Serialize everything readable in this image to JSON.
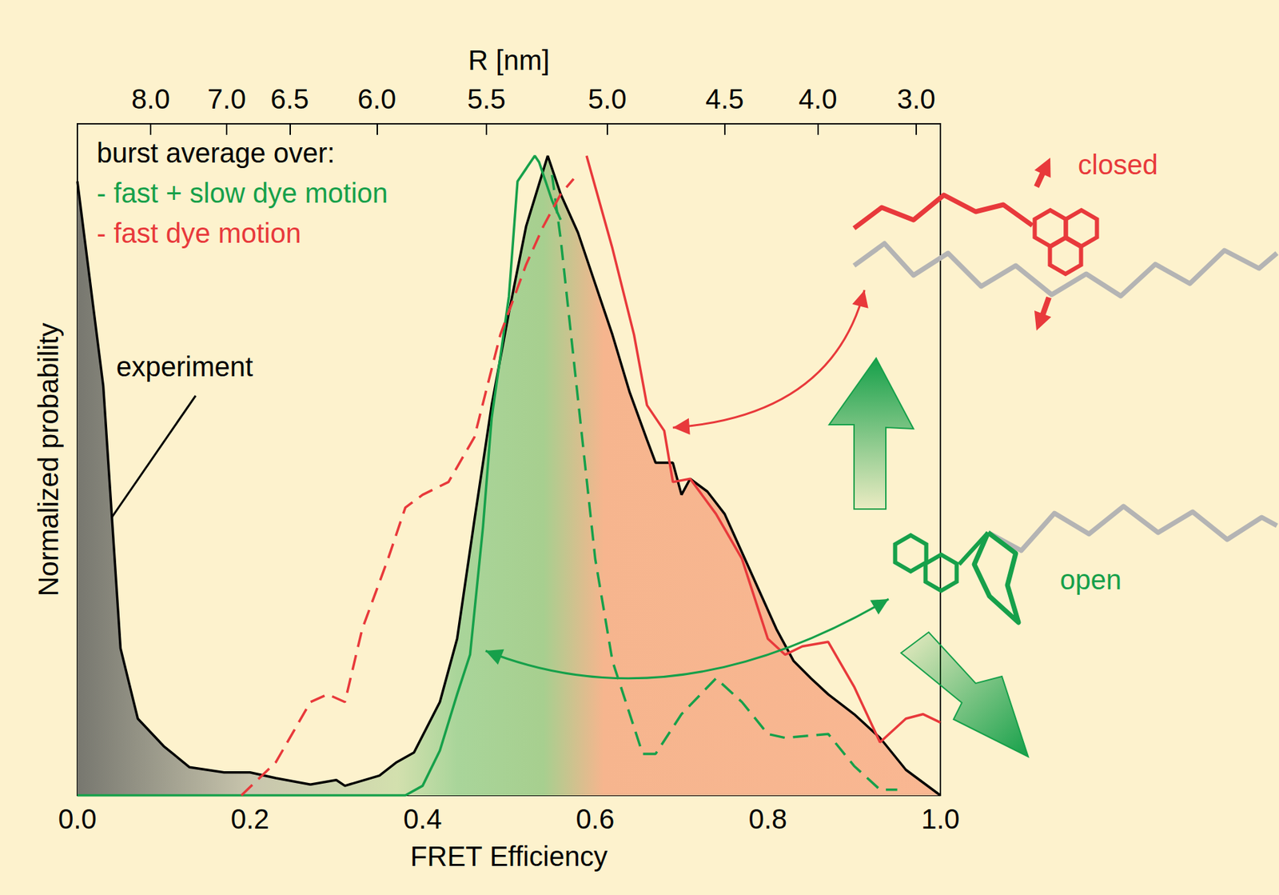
{
  "chart_data": {
    "type": "line",
    "xlabel": "FRET Efficiency",
    "ylabel": "Normalized probability",
    "x2label": "R [nm]",
    "xlim": [
      0,
      1
    ],
    "xticks": [
      {
        "value": 0,
        "label": "0.0"
      },
      0.2,
      0.4,
      0.6,
      0.8,
      {
        "value": 1,
        "label": "1.0"
      }
    ],
    "x2lim": [
      0,
      1
    ],
    "x2ticks": [
      {
        "value": 0.085,
        "label": "8.0"
      },
      {
        "value": 0.173,
        "label": "7.0"
      },
      {
        "value": 0.246,
        "label": "6.5"
      },
      {
        "value": 0.347,
        "label": "6.0"
      },
      {
        "value": 0.474,
        "label": "5.5"
      },
      {
        "value": 0.614,
        "label": "5.0"
      },
      {
        "value": 0.75,
        "label": "4.5"
      },
      {
        "value": 0.858,
        "label": "4.0"
      },
      {
        "value": 0.972,
        "label": "3.0"
      }
    ],
    "ylim": [
      0,
      1.05
    ],
    "yticks": [],
    "tick_labels": "x",
    "grid": false,
    "marker": "none",
    "legend": "upper left",
    "legend_title": "burst average over:",
    "annotations": [
      {
        "text": "closed",
        "color": "#e8393b"
      },
      {
        "text": "open",
        "color": "#16a04a"
      }
    ],
    "series": [
      {
        "name": "experiment",
        "type": "area",
        "color": "#000000",
        "line_style": "solid",
        "x": [
          0,
          0.03,
          0.05,
          0.07,
          0.1,
          0.13,
          0.17,
          0.2,
          0.23,
          0.27,
          0.3,
          0.31,
          0.35,
          0.37,
          0.39,
          0.42,
          0.44,
          0.46,
          0.48,
          0.5,
          0.52,
          0.545,
          0.56,
          0.58,
          0.6,
          0.62,
          0.64,
          0.66,
          0.67,
          0.69,
          0.7,
          0.71,
          0.73,
          0.75,
          0.77,
          0.79,
          0.81,
          0.83,
          0.85,
          0.87,
          0.9,
          0.93,
          0.96,
          1.0
        ],
        "values": [
          0.96,
          0.64,
          0.23,
          0.12,
          0.077,
          0.044,
          0.036,
          0.036,
          0.027,
          0.017,
          0.024,
          0.015,
          0.031,
          0.052,
          0.067,
          0.146,
          0.245,
          0.43,
          0.61,
          0.755,
          0.89,
          1.0,
          0.94,
          0.88,
          0.8,
          0.72,
          0.63,
          0.556,
          0.52,
          0.52,
          0.47,
          0.495,
          0.475,
          0.44,
          0.38,
          0.32,
          0.26,
          0.21,
          0.183,
          0.158,
          0.127,
          0.09,
          0.04,
          0
        ]
      },
      {
        "name": "- fast + slow dye motion",
        "type": "line",
        "color": "#16a04a",
        "line_style": "solid",
        "x": [
          0,
          0.38,
          0.4,
          0.42,
          0.44,
          0.455,
          0.47,
          0.48,
          0.5,
          0.51,
          0.53,
          0.535,
          0.55,
          0.56
        ],
        "values": [
          0,
          0,
          0.015,
          0.07,
          0.158,
          0.22,
          0.42,
          0.59,
          0.78,
          0.96,
          1.0,
          0.99,
          0.93,
          0.9
        ]
      },
      {
        "name": "- fast + slow dye motion",
        "type": "line",
        "color": "#16a04a",
        "line_style": "dashed",
        "x": [
          0.55,
          0.56,
          0.58,
          0.6,
          0.62,
          0.655,
          0.67,
          0.7,
          0.74,
          0.77,
          0.8,
          0.82,
          0.87,
          0.9,
          0.93,
          0.95
        ],
        "values": [
          0.97,
          0.87,
          0.62,
          0.37,
          0.21,
          0.065,
          0.065,
          0.127,
          0.183,
          0.146,
          0.096,
          0.09,
          0.096,
          0.046,
          0.009,
          0.009
        ]
      },
      {
        "name": "- fast dye motion",
        "type": "line",
        "color": "#e8393b",
        "line_style": "solid",
        "x": [
          0.59,
          0.62,
          0.645,
          0.66,
          0.68,
          0.69,
          0.71,
          0.74,
          0.77,
          0.8,
          0.82,
          0.84,
          0.87,
          0.9,
          0.93,
          0.96,
          0.98,
          1.0
        ],
        "values": [
          1.0,
          0.855,
          0.72,
          0.61,
          0.57,
          0.49,
          0.495,
          0.44,
          0.37,
          0.245,
          0.22,
          0.233,
          0.24,
          0.17,
          0.083,
          0.12,
          0.127,
          0.114
        ]
      },
      {
        "name": "- fast dye motion",
        "type": "line",
        "color": "#e8393b",
        "line_style": "dashed",
        "x": [
          0.19,
          0.23,
          0.27,
          0.29,
          0.31,
          0.33,
          0.36,
          0.38,
          0.4,
          0.43,
          0.46,
          0.49,
          0.52,
          0.54,
          0.56,
          0.575
        ],
        "values": [
          0,
          0.052,
          0.146,
          0.158,
          0.146,
          0.26,
          0.37,
          0.45,
          0.47,
          0.49,
          0.56,
          0.72,
          0.83,
          0.89,
          0.94,
          0.964
        ]
      }
    ]
  }
}
